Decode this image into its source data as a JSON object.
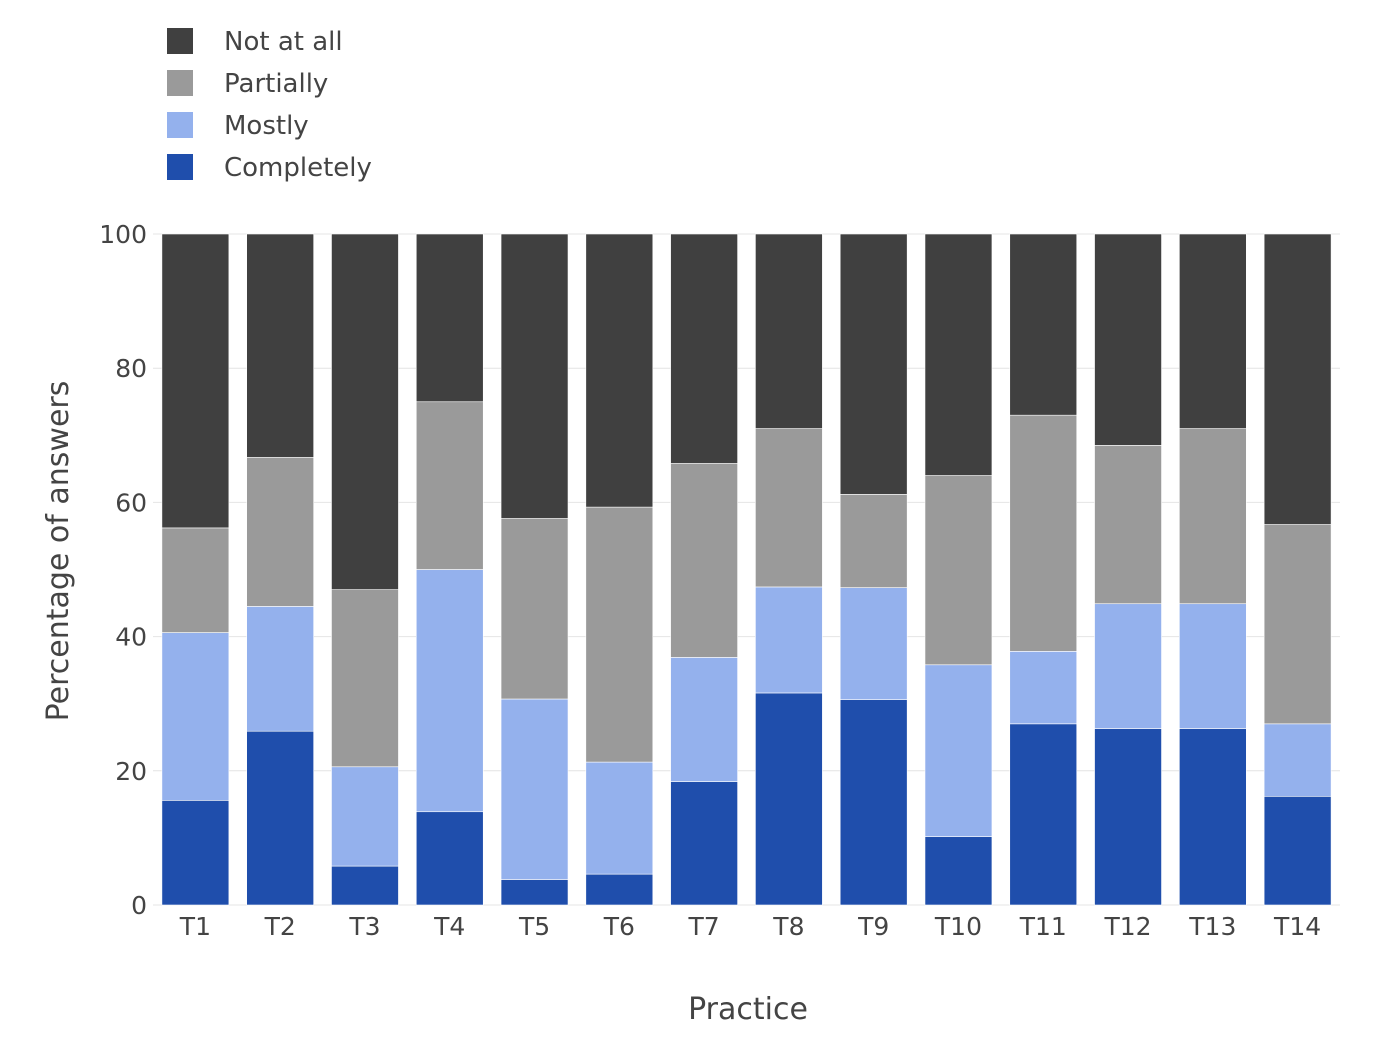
{
  "chart_data": {
    "type": "bar",
    "stacked": true,
    "categories": [
      "T1",
      "T2",
      "T3",
      "T4",
      "T5",
      "T6",
      "T7",
      "T8",
      "T9",
      "T10",
      "T11",
      "T12",
      "T13",
      "T14"
    ],
    "series": [
      {
        "name": "Completely",
        "color": "#1f4eac",
        "values": [
          15.6,
          25.9,
          5.8,
          13.9,
          3.8,
          4.6,
          18.4,
          31.6,
          30.6,
          10.2,
          27.0,
          26.3,
          26.3,
          16.2
        ]
      },
      {
        "name": "Mostly",
        "color": "#94b1ed",
        "values": [
          25.0,
          18.6,
          14.8,
          36.1,
          26.9,
          16.7,
          18.5,
          15.8,
          16.7,
          25.6,
          10.8,
          18.6,
          18.6,
          10.8
        ]
      },
      {
        "name": "Partially",
        "color": "#9a9a9a",
        "values": [
          15.6,
          22.2,
          26.4,
          25.0,
          26.9,
          38.0,
          28.9,
          23.6,
          13.9,
          28.2,
          35.2,
          23.6,
          26.1,
          29.7
        ]
      },
      {
        "name": "Not at all",
        "color": "#404040",
        "values": [
          43.8,
          33.3,
          53.0,
          25.0,
          42.4,
          40.7,
          34.2,
          29.0,
          38.8,
          36.0,
          27.0,
          31.5,
          29.0,
          43.3
        ]
      }
    ],
    "legend_order": [
      "Not at all",
      "Partially",
      "Mostly",
      "Completely"
    ],
    "legend_position": "top-left",
    "xlabel": "Practice",
    "ylabel": "Percentage of answers",
    "ylim": [
      0,
      100
    ],
    "yticks": [
      0,
      20,
      40,
      60,
      80,
      100
    ],
    "grid": true
  }
}
